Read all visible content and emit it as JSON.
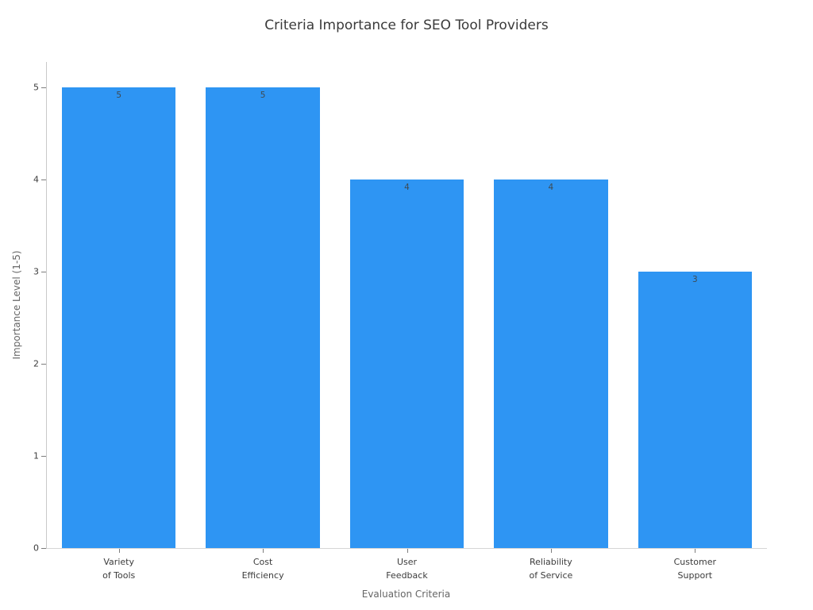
{
  "chart_data": {
    "type": "bar",
    "title": "Criteria Importance for SEO Tool Providers",
    "xlabel": "Evaluation Criteria",
    "ylabel": "Importance Level (1-5)",
    "categories": [
      "Variety\nof Tools",
      "Cost\nEfficiency",
      "User\nFeedback",
      "Reliability\nof Service",
      "Customer\nSupport"
    ],
    "values": [
      5,
      5,
      4,
      4,
      3
    ],
    "value_labels": [
      "5",
      "5",
      "4",
      "4",
      "3"
    ],
    "yticks": [
      0,
      1,
      2,
      3,
      4,
      5
    ],
    "ylim": [
      0,
      5.28
    ],
    "grid": false,
    "legend": null,
    "bar_color": "#2e95f3",
    "value_label_color": "#3e4a52",
    "background_color": "#ffffff"
  }
}
